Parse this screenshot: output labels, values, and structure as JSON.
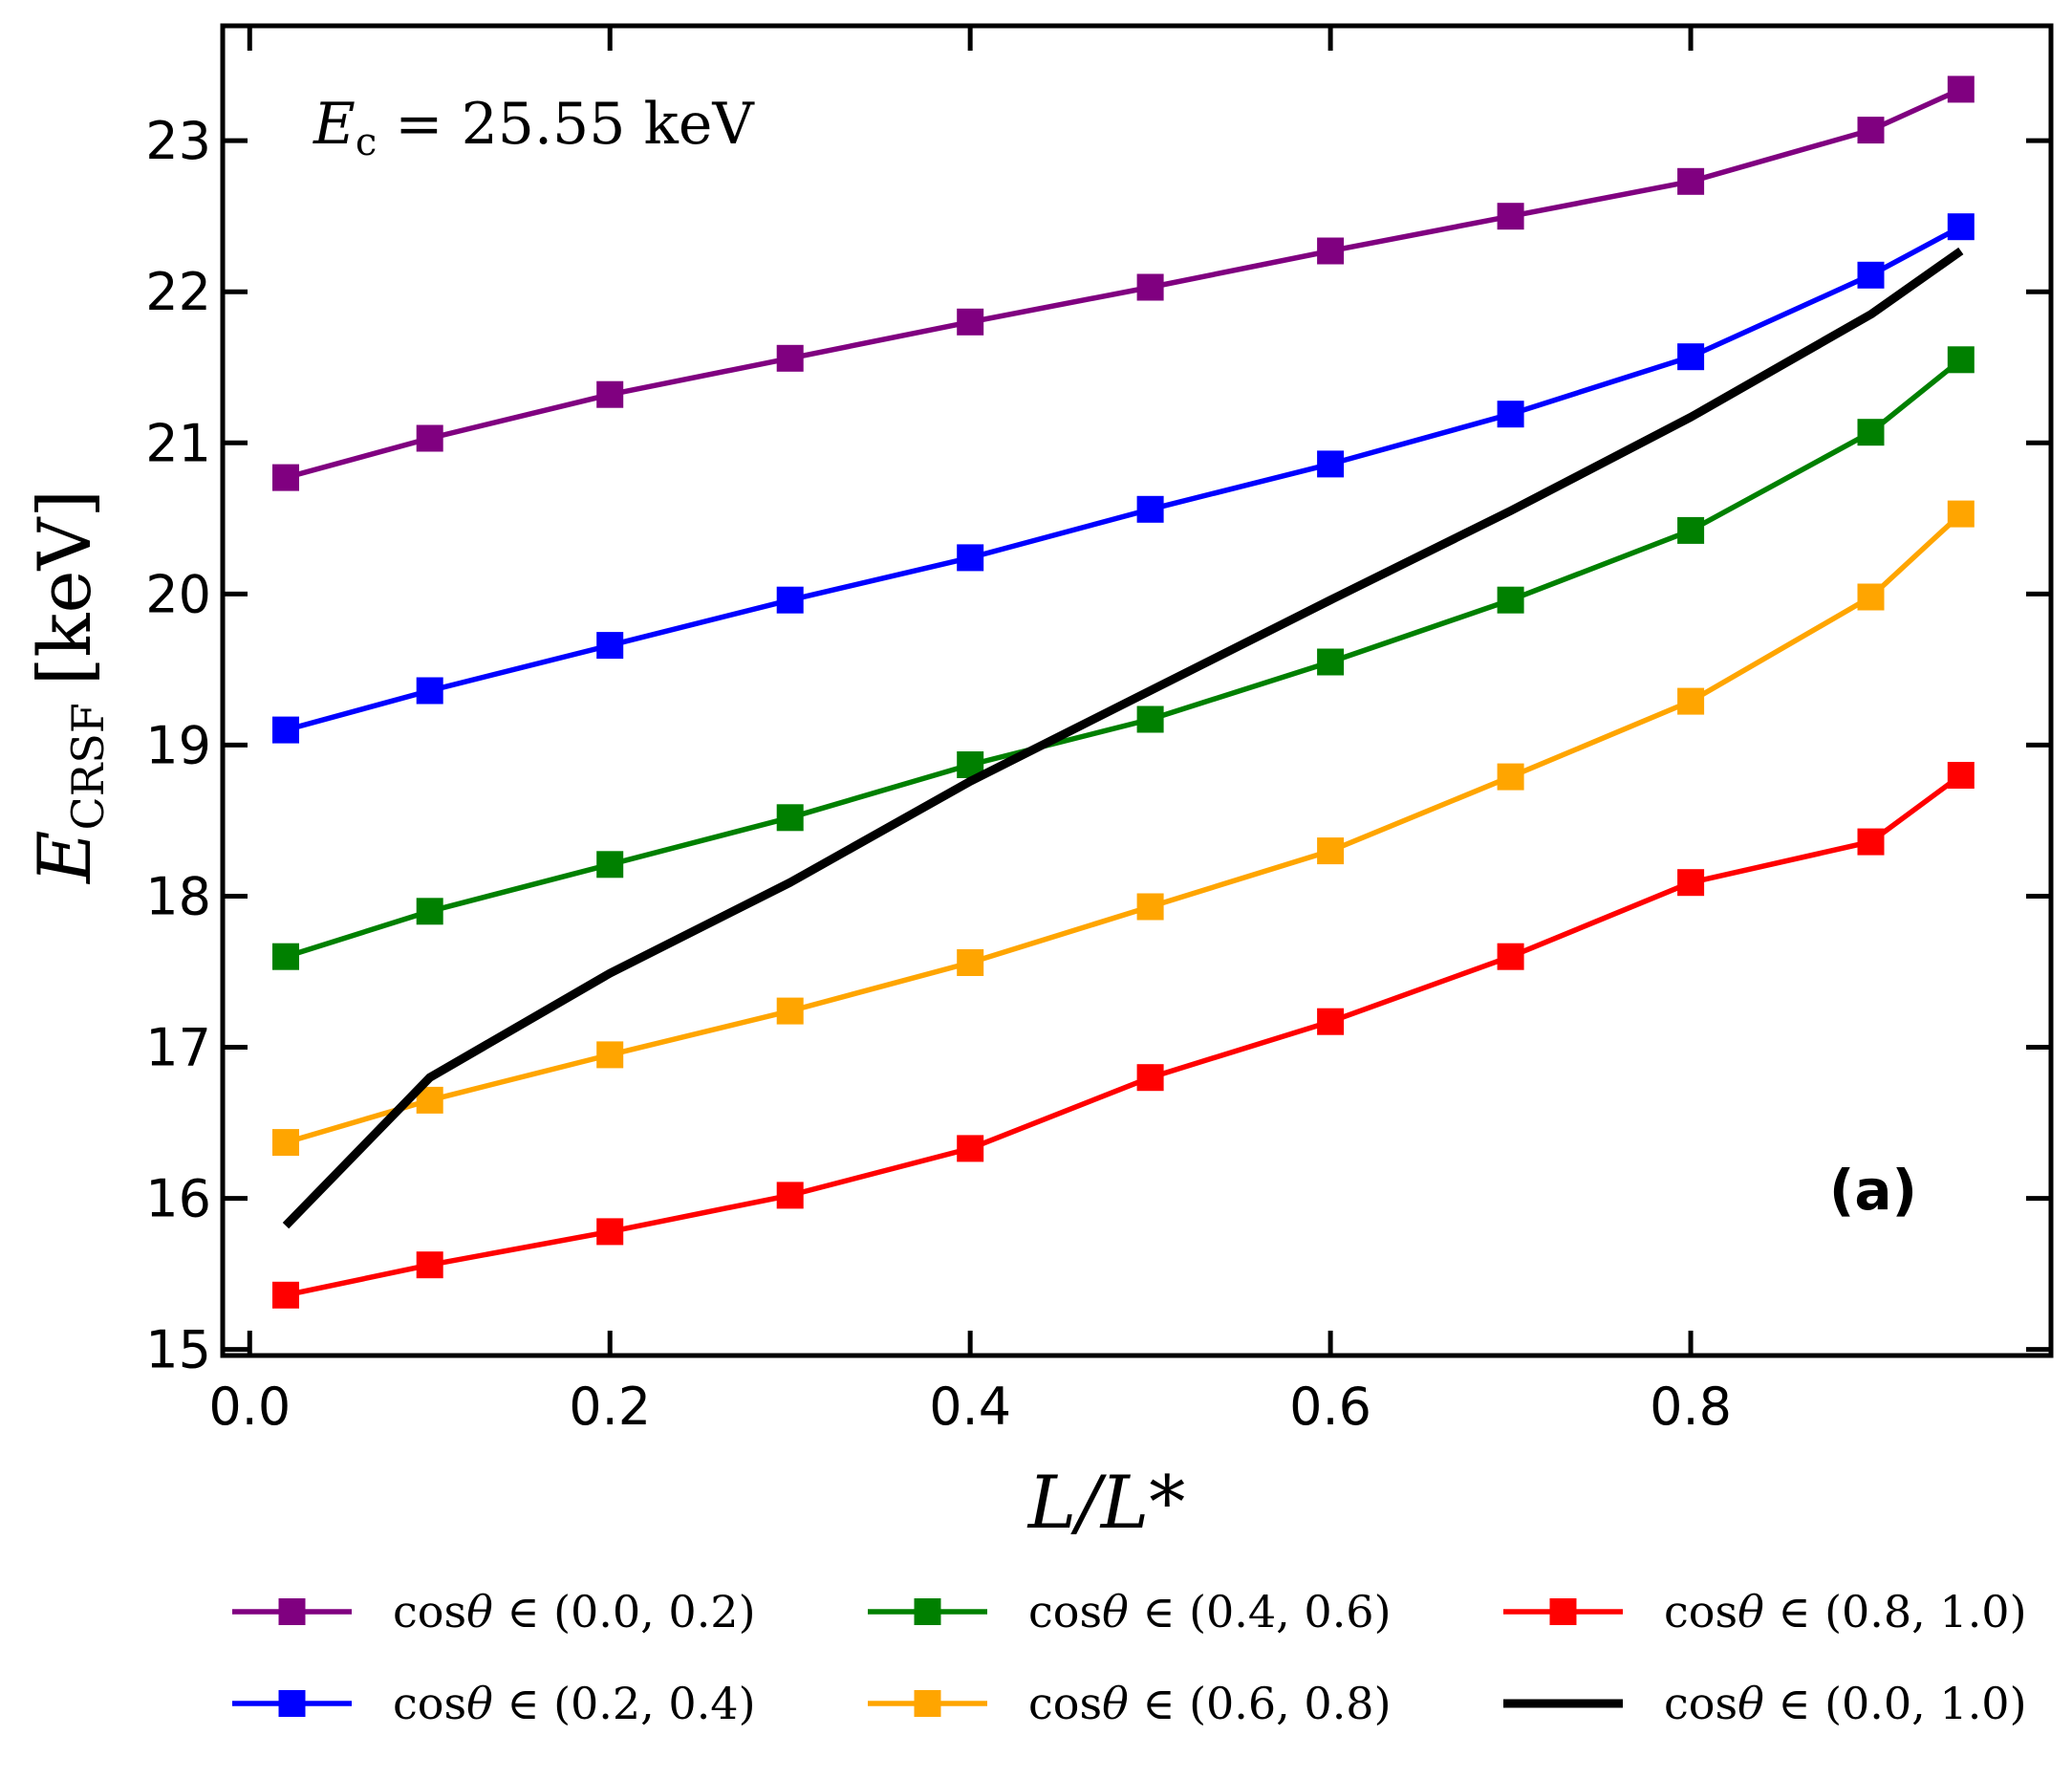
{
  "chart_data": {
    "type": "line",
    "xlabel": "L/L*",
    "ylabel": {
      "symbol": "E",
      "subscript": "CRSF",
      "unit": "[keV]"
    },
    "annotation": {
      "symbol": "E",
      "subscript": "c",
      "text": " = 25.55 keV"
    },
    "panel_label": "(a)",
    "xlim": [
      -0.015,
      1.0
    ],
    "ylim": [
      14.96,
      23.76
    ],
    "xticks": [
      0.0,
      0.2,
      0.4,
      0.6,
      0.8
    ],
    "xtick_labels": [
      "0.0",
      "0.2",
      "0.4",
      "0.6",
      "0.8"
    ],
    "yticks": [
      15,
      16,
      17,
      18,
      19,
      20,
      21,
      22,
      23
    ],
    "ytick_labels": [
      "15",
      "16",
      "17",
      "18",
      "19",
      "20",
      "21",
      "22",
      "23"
    ],
    "x": [
      0.02,
      0.1,
      0.2,
      0.3,
      0.4,
      0.5,
      0.6,
      0.7,
      0.8,
      0.9,
      0.95
    ],
    "series": [
      {
        "name": "cosθ ∈ (0.0, 0.2)",
        "color": "#800080",
        "marker": "square",
        "values": [
          20.77,
          21.03,
          21.32,
          21.56,
          21.8,
          22.03,
          22.27,
          22.5,
          22.73,
          23.07,
          23.34
        ]
      },
      {
        "name": "cosθ ∈ (0.2, 0.4)",
        "color": "#0000ff",
        "marker": "square",
        "values": [
          19.1,
          19.36,
          19.66,
          19.96,
          20.24,
          20.56,
          20.86,
          21.19,
          21.57,
          22.11,
          22.43
        ]
      },
      {
        "name": "cosθ ∈ (0.4, 0.6)",
        "color": "#008000",
        "marker": "square",
        "values": [
          17.6,
          17.9,
          18.21,
          18.52,
          18.87,
          19.17,
          19.55,
          19.96,
          20.42,
          21.07,
          21.55
        ]
      },
      {
        "name": "cosθ ∈ (0.6, 0.8)",
        "color": "#ffa500",
        "marker": "square",
        "values": [
          16.37,
          16.65,
          16.95,
          17.24,
          17.56,
          17.93,
          18.3,
          18.79,
          19.29,
          19.98,
          20.53
        ]
      },
      {
        "name": "cosθ ∈ (0.8, 1.0)",
        "color": "#ff0000",
        "marker": "square",
        "values": [
          15.36,
          15.56,
          15.78,
          16.02,
          16.33,
          16.8,
          17.17,
          17.6,
          18.09,
          18.36,
          18.8
        ]
      },
      {
        "name": "cosθ ∈ (0.0, 1.0)",
        "color": "#000000",
        "marker": "none",
        "values": [
          15.82,
          16.8,
          17.49,
          18.09,
          18.76,
          19.36,
          19.96,
          20.55,
          21.17,
          21.85,
          22.27
        ]
      }
    ],
    "legend": {
      "position": "bottom",
      "columns": 3,
      "entries": [
        {
          "prefix": "cos",
          "theta": "θ",
          "suffix": " ∈ (0.0, 0.2)"
        },
        {
          "prefix": "cos",
          "theta": "θ",
          "suffix": " ∈ (0.2, 0.4)"
        },
        {
          "prefix": "cos",
          "theta": "θ",
          "suffix": " ∈ (0.4, 0.6)"
        },
        {
          "prefix": "cos",
          "theta": "θ",
          "suffix": " ∈ (0.6, 0.8)"
        },
        {
          "prefix": "cos",
          "theta": "θ",
          "suffix": " ∈ (0.8, 1.0)"
        },
        {
          "prefix": "cos",
          "theta": "θ",
          "suffix": " ∈ (0.0, 1.0)"
        }
      ]
    }
  }
}
